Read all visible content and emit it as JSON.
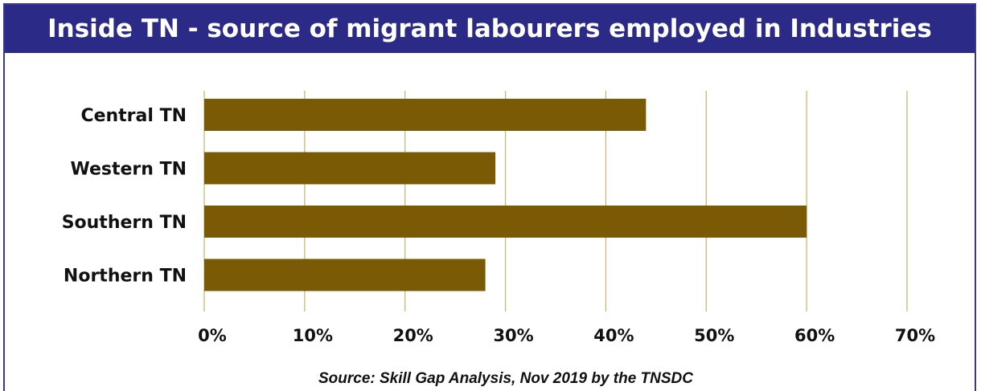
{
  "header": {
    "title": "Inside TN - source of migrant labourers employed in Industries"
  },
  "source_note": "Source: Skill Gap Analysis, Nov 2019 by the TNSDC",
  "colors": {
    "bar": "#7a5a05",
    "grid": "#c8b878",
    "header_bg": "#2b2b87",
    "header_text": "#ffffff"
  },
  "chart_data": {
    "type": "bar",
    "orientation": "horizontal",
    "categories": [
      "Central TN",
      "Western TN",
      "Southern TN",
      "Northern TN"
    ],
    "values": [
      0.44,
      0.29,
      0.6,
      0.28
    ],
    "xlim": [
      0,
      0.7
    ],
    "xticks": [
      "0%",
      "10%",
      "20%",
      "30%",
      "40%",
      "50%",
      "60%",
      "70%"
    ],
    "grid": true
  }
}
